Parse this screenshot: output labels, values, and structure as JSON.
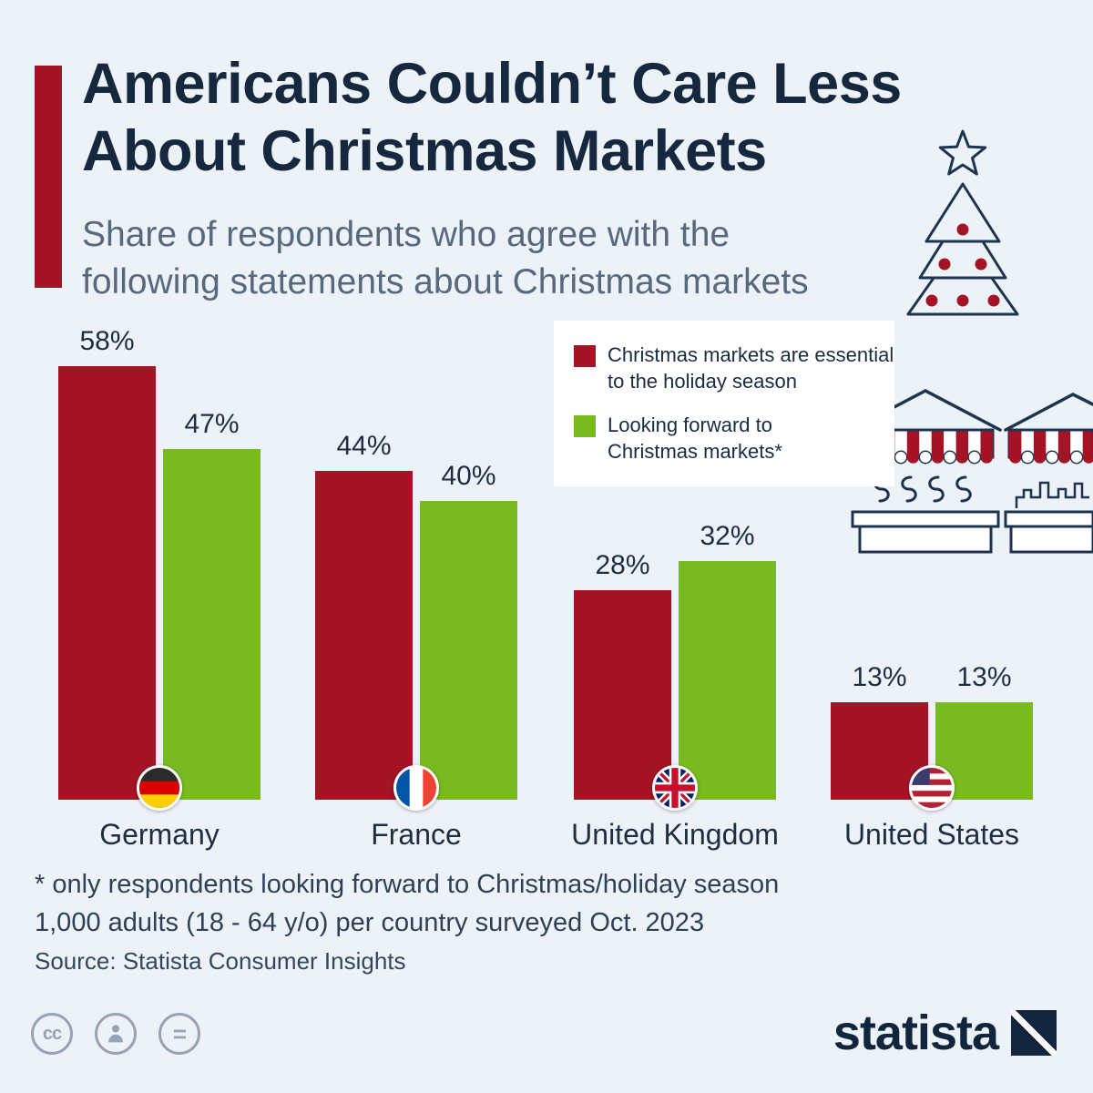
{
  "header": {
    "title_line1": "Americans Couldn’t Care Less",
    "title_line2": "About Christmas Markets",
    "subtitle_line1": "Share of respondents who agree with the",
    "subtitle_line2": "following statements about Christmas markets"
  },
  "legend": {
    "items": [
      {
        "line1": "Christmas markets are essential",
        "line2": "to the holiday season",
        "color": "#a41425"
      },
      {
        "line1": "Looking forward to",
        "line2": "Christmas markets*",
        "color": "#78ba1f"
      }
    ]
  },
  "chart_data": {
    "type": "bar",
    "categories": [
      "Germany",
      "France",
      "United Kingdom",
      "United States"
    ],
    "flags": [
      "de",
      "fr",
      "gb",
      "us"
    ],
    "series": [
      {
        "name": "Christmas markets are essential to the holiday season",
        "color": "#a41425",
        "values": [
          58,
          44,
          28,
          13
        ]
      },
      {
        "name": "Looking forward to Christmas markets*",
        "color": "#78ba1f",
        "values": [
          47,
          40,
          32,
          13
        ]
      }
    ],
    "value_suffix": "%",
    "ylim": [
      0,
      60
    ],
    "grid": false,
    "legend_position": "top-right"
  },
  "footnotes": {
    "note1": "* only respondents looking forward to Christmas/holiday season",
    "note2": "1,000 adults (18 - 64 y/o) per country surveyed Oct. 2023",
    "source": "Source: Statista Consumer Insights"
  },
  "branding": {
    "logo_text": "statista",
    "cc_label": "cc",
    "equals_label": "="
  },
  "colors": {
    "background": "#edf2f8",
    "accent_red": "#a41425",
    "green": "#78ba1f",
    "navy": "#16283e",
    "outline_navy": "#1d3450"
  }
}
